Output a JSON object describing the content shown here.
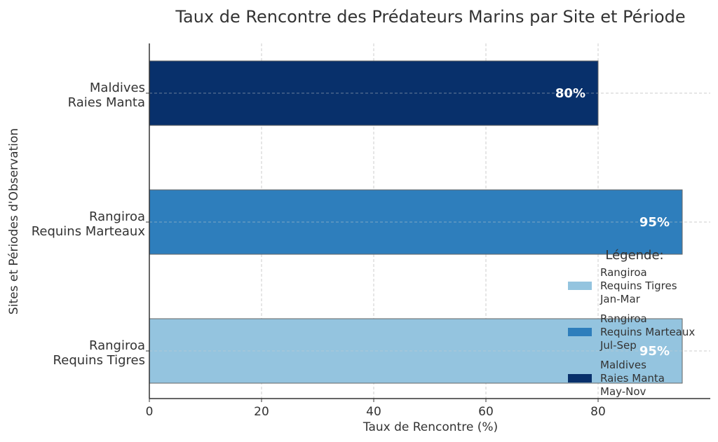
{
  "chart_data": {
    "type": "bar",
    "orientation": "horizontal",
    "title": "Taux de Rencontre des Prédateurs Marins par Site et Période",
    "xlabel": "Taux de Rencontre (%)",
    "ylabel": "Sites et Périodes d'Observation",
    "xlim": [
      0,
      100
    ],
    "xticks": [
      "0",
      "20",
      "40",
      "60",
      "80"
    ],
    "grid": true,
    "categories": [
      {
        "lines": [
          "Rangiroa",
          "Requins Tigres"
        ],
        "value": 95,
        "label": "95%",
        "color": "#94c4df"
      },
      {
        "lines": [
          "Rangiroa",
          "Requins Marteaux"
        ],
        "value": 95,
        "label": "95%",
        "color": "#2e7ebc"
      },
      {
        "lines": [
          "Maldives",
          "Raies Manta"
        ],
        "value": 80,
        "label": "80%",
        "color": "#08306b"
      }
    ],
    "legend": {
      "title": "Légende:",
      "placement": "right",
      "entries": [
        {
          "lines": [
            "Rangiroa",
            "Requins Tigres",
            "Jan-Mar"
          ],
          "color": "#94c4df"
        },
        {
          "lines": [
            "Rangiroa",
            "Requins Marteaux",
            "Jul-Sep"
          ],
          "color": "#2e7ebc"
        },
        {
          "lines": [
            "Maldives",
            "Raies Manta",
            "May-Nov"
          ],
          "color": "#08306b"
        }
      ]
    }
  }
}
